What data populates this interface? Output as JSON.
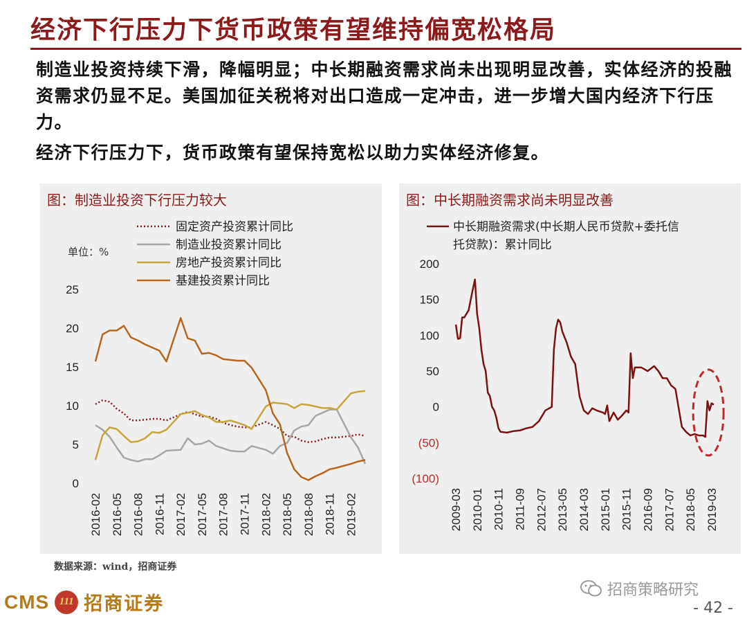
{
  "slide": {
    "title": "经济下行压力下货币政策有望维持偏宽松格局",
    "paragraphs": [
      "制造业投资持续下滑，降幅明显；中长期融资需求尚未出现明显改善，实体经济的投融资需求仍显不足。美国加征关税将对出口造成一定冲击，进一步增大国内经济下行压力。",
      "经济下行压力下，货币政策有望保持宽松以助力实体经济修复。"
    ],
    "source": "数据来源：wind，招商证券",
    "wechat": "招商策略研究",
    "logo": {
      "cms": "CMS",
      "badge": "111",
      "name": "招商证券"
    },
    "page_number": "- 42 -"
  },
  "colors": {
    "title": "#8b1a1a",
    "fixed_asset": "#8b1a1a",
    "manufacturing": "#a6a6a6",
    "real_estate": "#c8a43c",
    "infrastructure": "#b8651e",
    "financing": "#7a1010",
    "highlight_circle": "#c0282d"
  },
  "chart_data": [
    {
      "type": "line",
      "title": "图：制造业投资下行压力较大",
      "unit_label": "单位：%",
      "ylim": [
        0,
        25
      ],
      "y_ticks": [
        0,
        5,
        10,
        15,
        20,
        25
      ],
      "x_ticks": [
        "2016-02",
        "2016-05",
        "2016-08",
        "2016-11",
        "2017-02",
        "2017-05",
        "2017-08",
        "2017-11",
        "2018-02",
        "2018-05",
        "2018-08",
        "2018-11",
        "2019-02"
      ],
      "x": [
        "2016-02",
        "2016-03",
        "2016-04",
        "2016-05",
        "2016-06",
        "2016-07",
        "2016-08",
        "2016-09",
        "2016-10",
        "2016-11",
        "2016-12",
        "2017-02",
        "2017-03",
        "2017-04",
        "2017-05",
        "2017-06",
        "2017-07",
        "2017-08",
        "2017-09",
        "2017-10",
        "2017-11",
        "2017-12",
        "2018-02",
        "2018-03",
        "2018-04",
        "2018-05",
        "2018-06",
        "2018-07",
        "2018-08",
        "2018-09",
        "2018-10",
        "2018-11",
        "2018-12",
        "2019-02",
        "2019-03",
        "2019-04"
      ],
      "legend": "top",
      "series": [
        {
          "name": "固定资产投资累计同比",
          "style": "dotted",
          "values": [
            10.2,
            10.7,
            10.5,
            9.6,
            9.0,
            8.1,
            8.1,
            8.2,
            8.3,
            8.3,
            8.1,
            8.9,
            9.2,
            8.9,
            8.6,
            8.6,
            8.3,
            7.8,
            7.5,
            7.3,
            7.2,
            7.2,
            7.9,
            7.5,
            7.0,
            6.1,
            6.0,
            5.5,
            5.3,
            5.4,
            5.7,
            5.9,
            5.9,
            6.1,
            6.3,
            6.1
          ]
        },
        {
          "name": "制造业投资累计同比",
          "style": "solid",
          "values": [
            7.5,
            6.9,
            6.0,
            4.6,
            3.3,
            3.0,
            2.8,
            3.1,
            3.1,
            3.6,
            4.2,
            4.3,
            5.8,
            5.0,
            5.1,
            5.5,
            4.8,
            4.5,
            4.2,
            4.1,
            4.1,
            4.8,
            4.3,
            3.8,
            4.8,
            5.2,
            6.8,
            7.3,
            7.5,
            8.7,
            9.1,
            9.5,
            9.5,
            5.9,
            4.6,
            2.5
          ]
        },
        {
          "name": "房地产投资累计同比",
          "style": "solid",
          "values": [
            3.0,
            6.2,
            7.2,
            7.0,
            6.1,
            5.3,
            5.4,
            5.8,
            6.6,
            6.5,
            6.9,
            8.9,
            9.1,
            9.3,
            8.8,
            8.5,
            7.9,
            7.9,
            8.1,
            7.8,
            7.5,
            7.0,
            9.9,
            10.4,
            10.3,
            10.2,
            9.7,
            10.2,
            10.1,
            9.9,
            9.7,
            9.7,
            9.5,
            11.6,
            11.8,
            11.9
          ]
        },
        {
          "name": "基建投资累计同比",
          "style": "solid",
          "values": [
            15.7,
            19.2,
            19.7,
            19.7,
            20.3,
            18.8,
            18.4,
            17.9,
            17.5,
            17.1,
            15.7,
            21.3,
            18.7,
            18.4,
            16.7,
            16.8,
            16.5,
            16.0,
            15.9,
            15.8,
            15.8,
            14.9,
            12.0,
            9.0,
            7.6,
            3.9,
            1.8,
            0.8,
            0.4,
            0.9,
            1.3,
            1.8,
            2.0,
            2.5,
            2.8,
            3.0
          ]
        }
      ]
    },
    {
      "type": "line",
      "title": "图：中长期融资需求尚未明显改善",
      "ylim": [
        -100,
        200
      ],
      "y_ticks": [
        200,
        150,
        100,
        50,
        0,
        -50,
        -100
      ],
      "y_tick_labels": [
        "200",
        "150",
        "100",
        "50",
        "0",
        "(50)",
        "(100)"
      ],
      "x_ticks": [
        "2009-03",
        "2010-01",
        "2010-11",
        "2011-09",
        "2012-07",
        "2013-05",
        "2014-03",
        "2015-01",
        "2015-11",
        "2016-09",
        "2017-07",
        "2018-05",
        "2019-03"
      ],
      "legend": "top",
      "series": [
        {
          "name": "中长期融资需求(中长期人民币贷款+委托信托贷款)：累计同比",
          "points": [
            [
              "2009-03",
              115
            ],
            [
              "2009-04",
              95
            ],
            [
              "2009-05",
              96
            ],
            [
              "2009-06",
              125
            ],
            [
              "2009-07",
              125
            ],
            [
              "2009-08",
              130
            ],
            [
              "2009-09",
              135
            ],
            [
              "2009-10",
              150
            ],
            [
              "2009-11",
              165
            ],
            [
              "2009-12",
              178
            ],
            [
              "2010-01",
              130
            ],
            [
              "2010-02",
              110
            ],
            [
              "2010-03",
              80
            ],
            [
              "2010-04",
              60
            ],
            [
              "2010-05",
              50
            ],
            [
              "2010-06",
              20
            ],
            [
              "2010-07",
              15
            ],
            [
              "2010-08",
              0
            ],
            [
              "2010-09",
              -5
            ],
            [
              "2010-10",
              -15
            ],
            [
              "2010-11",
              -30
            ],
            [
              "2010-12",
              -35
            ],
            [
              "2011-03",
              -36
            ],
            [
              "2011-06",
              -34
            ],
            [
              "2011-09",
              -33
            ],
            [
              "2011-12",
              -30
            ],
            [
              "2012-03",
              -28
            ],
            [
              "2012-06",
              -20
            ],
            [
              "2012-09",
              -5
            ],
            [
              "2012-12",
              0
            ],
            [
              "2013-01",
              80
            ],
            [
              "2013-02",
              110
            ],
            [
              "2013-03",
              122
            ],
            [
              "2013-04",
              118
            ],
            [
              "2013-05",
              105
            ],
            [
              "2013-07",
              90
            ],
            [
              "2013-09",
              70
            ],
            [
              "2013-11",
              60
            ],
            [
              "2014-01",
              15
            ],
            [
              "2014-03",
              -5
            ],
            [
              "2014-05",
              -10
            ],
            [
              "2014-07",
              -2
            ],
            [
              "2014-09",
              -5
            ],
            [
              "2014-12",
              -8
            ],
            [
              "2015-01",
              -10
            ],
            [
              "2015-02",
              2
            ],
            [
              "2015-03",
              -20
            ],
            [
              "2015-05",
              -8
            ],
            [
              "2015-07",
              -18
            ],
            [
              "2015-09",
              -12
            ],
            [
              "2015-11",
              -5
            ],
            [
              "2015-12",
              -8
            ],
            [
              "2016-01",
              75
            ],
            [
              "2016-02",
              40
            ],
            [
              "2016-03",
              55
            ],
            [
              "2016-06",
              55
            ],
            [
              "2016-09",
              50
            ],
            [
              "2016-12",
              57
            ],
            [
              "2017-02",
              50
            ],
            [
              "2017-04",
              40
            ],
            [
              "2017-06",
              40
            ],
            [
              "2017-08",
              30
            ],
            [
              "2017-10",
              25
            ],
            [
              "2018-01",
              -28
            ],
            [
              "2018-03",
              -35
            ],
            [
              "2018-05",
              -40
            ],
            [
              "2018-07",
              -38
            ],
            [
              "2018-09",
              -40
            ],
            [
              "2018-11",
              -40
            ],
            [
              "2018-12",
              -42
            ],
            [
              "2019-01",
              8
            ],
            [
              "2019-02",
              -5
            ],
            [
              "2019-03",
              5
            ],
            [
              "2019-04",
              3
            ]
          ]
        }
      ]
    }
  ]
}
